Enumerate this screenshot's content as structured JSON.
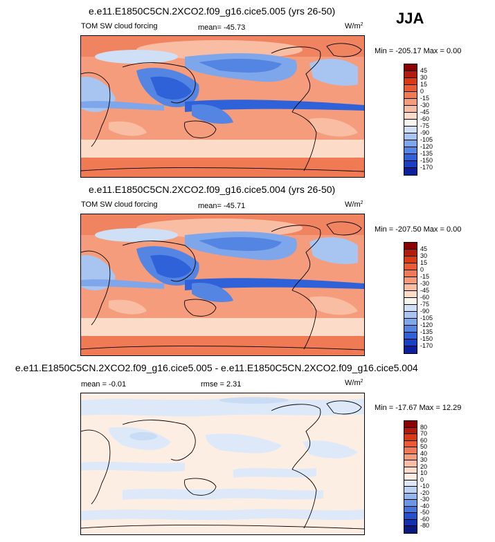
{
  "season": "JJA",
  "panels": [
    {
      "title": "e.e11.E1850C5CN.2XCO2.f09_g16.cice5.005 (yrs 26-50)",
      "left_label": "TOM SW cloud forcing",
      "center_label": "mean= -45.73",
      "units": "W/m",
      "units_sup": "2",
      "minmax": "Min = -205.17 Max =   0.00",
      "colorbar": {
        "labels": [
          "45",
          "30",
          "15",
          "0",
          "-15",
          "-30",
          "-45",
          "-60",
          "-75",
          "-90",
          "-105",
          "-120",
          "-135",
          "-150",
          "-170"
        ],
        "colors": [
          "#8b0000",
          "#b31b0c",
          "#d93b16",
          "#ea5a33",
          "#f07a54",
          "#f59c7c",
          "#f9bda3",
          "#fcdcc8",
          "#f8f6ef",
          "#cfe0f6",
          "#a7c5f0",
          "#7ea6ea",
          "#5585e2",
          "#2f62d8",
          "#1a3fc4",
          "#0d1f9c"
        ]
      }
    },
    {
      "title": "e.e11.E1850C5CN.2XCO2.f09_g16.cice5.004 (yrs 26-50)",
      "left_label": "TOM SW cloud forcing",
      "center_label": "mean= -45.71",
      "units": "W/m",
      "units_sup": "2",
      "minmax": "Min = -207.50 Max =   0.00",
      "colorbar": {
        "labels": [
          "45",
          "30",
          "15",
          "0",
          "-15",
          "-30",
          "-45",
          "-60",
          "-75",
          "-90",
          "-105",
          "-120",
          "-135",
          "-150",
          "-170"
        ],
        "colors": [
          "#8b0000",
          "#b31b0c",
          "#d93b16",
          "#ea5a33",
          "#f07a54",
          "#f59c7c",
          "#f9bda3",
          "#fcdcc8",
          "#f8f6ef",
          "#cfe0f6",
          "#a7c5f0",
          "#7ea6ea",
          "#5585e2",
          "#2f62d8",
          "#1a3fc4",
          "#0d1f9c"
        ]
      }
    },
    {
      "title": "e.e11.E1850C5CN.2XCO2.f09_g16.cice5.005 - e.e11.E1850C5CN.2XCO2.f09_g16.cice5.004",
      "left_label": "mean =  -0.01",
      "center_label": "rmse =   2.31",
      "units": "W/m",
      "units_sup": "2",
      "minmax": "Min = -17.67 Max =  12.29",
      "colorbar": {
        "labels": [
          "80",
          "70",
          "60",
          "50",
          "40",
          "30",
          "20",
          "10",
          "0",
          "-10",
          "-20",
          "-30",
          "-40",
          "-50",
          "-60",
          "-80"
        ],
        "colors": [
          "#8b0000",
          "#b31b0c",
          "#d93b16",
          "#ea5a33",
          "#f07a54",
          "#f59c7c",
          "#f9bda3",
          "#fcdcc8",
          "#fdeee4",
          "#dde9f8",
          "#bcd3f3",
          "#94b7ed",
          "#6b96e5",
          "#4474dc",
          "#2650cc",
          "#1330b0",
          "#081a80"
        ]
      }
    }
  ]
}
